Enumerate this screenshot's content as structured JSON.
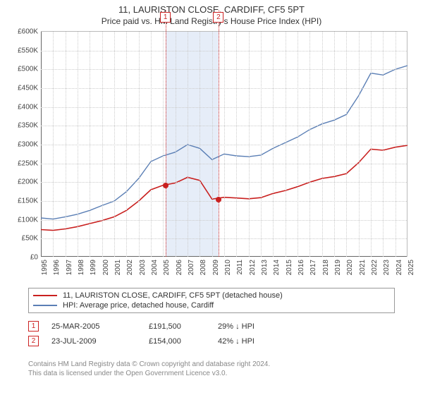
{
  "title": "11, LAURISTON CLOSE, CARDIFF, CF5 5PT",
  "subtitle": "Price paid vs. HM Land Registry's House Price Index (HPI)",
  "chart": {
    "type": "line",
    "background_color": "#ffffff",
    "grid_color": "#cccccc",
    "axis_color": "#666666",
    "label_fontsize": 10,
    "label_color": "#444444",
    "y": {
      "min": 0,
      "max": 600000,
      "step": 50000,
      "prefix": "£",
      "suffix_k": "K"
    },
    "x": {
      "years": [
        1995,
        1996,
        1997,
        1998,
        1999,
        2000,
        2001,
        2002,
        2003,
        2004,
        2005,
        2006,
        2007,
        2008,
        2009,
        2010,
        2011,
        2012,
        2013,
        2014,
        2015,
        2016,
        2017,
        2018,
        2019,
        2020,
        2021,
        2022,
        2023,
        2024,
        2025
      ]
    },
    "shade_band": {
      "from_year": 2005.22,
      "to_year": 2009.56,
      "fill": "rgba(200,215,240,0.45)"
    },
    "series": [
      {
        "name": "hpi",
        "label": "HPI: Average price, detached house, Cardiff",
        "color": "#5b7fb5",
        "line_width": 1.4,
        "points": [
          [
            1995,
            105000
          ],
          [
            1996,
            102000
          ],
          [
            1997,
            108000
          ],
          [
            1998,
            115000
          ],
          [
            1999,
            125000
          ],
          [
            2000,
            138000
          ],
          [
            2001,
            150000
          ],
          [
            2002,
            175000
          ],
          [
            2003,
            210000
          ],
          [
            2004,
            255000
          ],
          [
            2005,
            270000
          ],
          [
            2006,
            280000
          ],
          [
            2007,
            300000
          ],
          [
            2008,
            290000
          ],
          [
            2009,
            260000
          ],
          [
            2010,
            275000
          ],
          [
            2011,
            270000
          ],
          [
            2012,
            268000
          ],
          [
            2013,
            272000
          ],
          [
            2014,
            290000
          ],
          [
            2015,
            305000
          ],
          [
            2016,
            320000
          ],
          [
            2017,
            340000
          ],
          [
            2018,
            355000
          ],
          [
            2019,
            365000
          ],
          [
            2020,
            380000
          ],
          [
            2021,
            430000
          ],
          [
            2022,
            490000
          ],
          [
            2023,
            485000
          ],
          [
            2024,
            500000
          ],
          [
            2025,
            510000
          ]
        ]
      },
      {
        "name": "price_paid",
        "label": "11, LAURISTON CLOSE, CARDIFF, CF5 5PT (detached house)",
        "color": "#c9201f",
        "line_width": 1.6,
        "points": [
          [
            1995,
            74000
          ],
          [
            1996,
            72000
          ],
          [
            1997,
            76000
          ],
          [
            1998,
            82000
          ],
          [
            1999,
            90000
          ],
          [
            2000,
            98000
          ],
          [
            2001,
            108000
          ],
          [
            2002,
            125000
          ],
          [
            2003,
            150000
          ],
          [
            2004,
            180000
          ],
          [
            2005,
            192000
          ],
          [
            2006,
            198000
          ],
          [
            2007,
            213000
          ],
          [
            2008,
            205000
          ],
          [
            2009,
            155000
          ],
          [
            2010,
            160000
          ],
          [
            2011,
            158000
          ],
          [
            2012,
            156000
          ],
          [
            2013,
            159000
          ],
          [
            2014,
            170000
          ],
          [
            2015,
            178000
          ],
          [
            2016,
            188000
          ],
          [
            2017,
            200000
          ],
          [
            2018,
            210000
          ],
          [
            2019,
            215000
          ],
          [
            2020,
            223000
          ],
          [
            2021,
            252000
          ],
          [
            2022,
            288000
          ],
          [
            2023,
            285000
          ],
          [
            2024,
            293000
          ],
          [
            2025,
            298000
          ]
        ]
      }
    ],
    "sale_markers": [
      {
        "n": "1",
        "year": 2005.22,
        "price": 191500,
        "dot_color": "#c9201f"
      },
      {
        "n": "2",
        "year": 2009.56,
        "price": 154000,
        "dot_color": "#c9201f"
      }
    ],
    "marker_line_color": "#cc2222"
  },
  "legend": {
    "rows": [
      {
        "swatch_color": "#c9201f",
        "text": "11, LAURISTON CLOSE, CARDIFF, CF5 5PT (detached house)"
      },
      {
        "swatch_color": "#5b7fb5",
        "text": "HPI: Average price, detached house, Cardiff"
      }
    ]
  },
  "sales": [
    {
      "n": "1",
      "date": "25-MAR-2005",
      "price": "£191,500",
      "delta": "29% ↓ HPI"
    },
    {
      "n": "2",
      "date": "23-JUL-2009",
      "price": "£154,000",
      "delta": "42% ↓ HPI"
    }
  ],
  "footer_line1": "Contains HM Land Registry data © Crown copyright and database right 2024.",
  "footer_line2": "This data is licensed under the Open Government Licence v3.0."
}
